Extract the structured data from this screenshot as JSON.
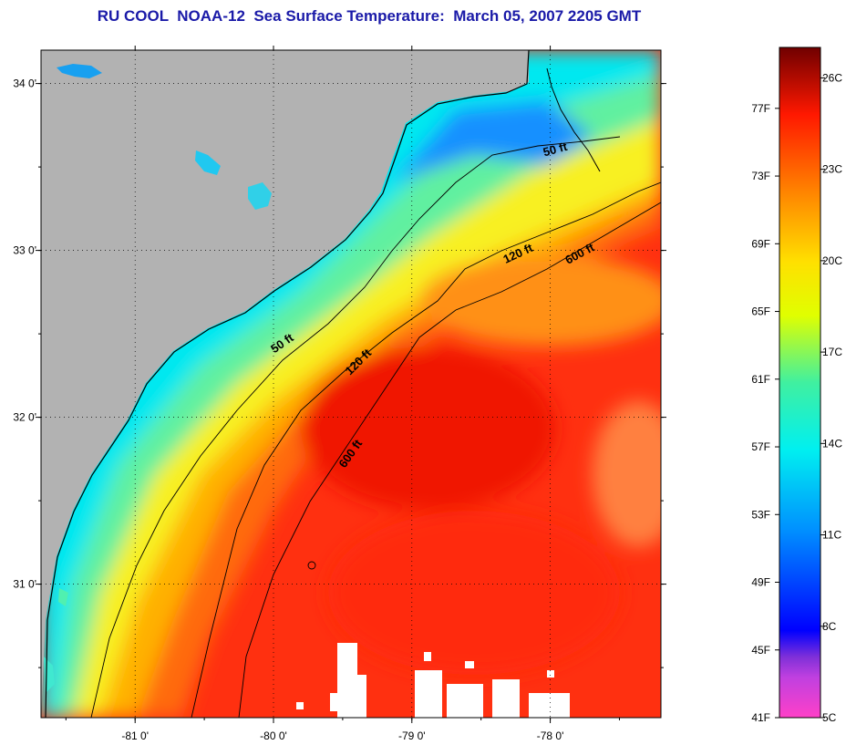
{
  "title": "RU COOL  NOAA-12  Sea Surface Temperature:  March 05, 2007 2205 GMT",
  "map": {
    "lon_ticks": [
      {
        "label": "-81 0'",
        "lon": -81
      },
      {
        "label": "-80 0'",
        "lon": -80
      },
      {
        "label": "-79 0'",
        "lon": -79
      },
      {
        "label": "-78 0'",
        "lon": -78
      }
    ],
    "lat_ticks": [
      {
        "label": "34 0'",
        "lat": 34
      },
      {
        "label": "33 0'",
        "lat": 33
      },
      {
        "label": "32 0'",
        "lat": 32
      },
      {
        "label": "31 0'",
        "lat": 31
      }
    ],
    "extent": {
      "lon_min": -81.68,
      "lon_max": -77.2,
      "lat_min": 30.2,
      "lat_max": 34.2
    },
    "contours": [
      {
        "label": "50 ft"
      },
      {
        "label": "120 ft"
      },
      {
        "label": "600 ft"
      }
    ],
    "colors": {
      "land": "#b2b2b2",
      "coast": "#000000",
      "cloud": "#ffffff"
    }
  },
  "colorbar": {
    "fahrenheit": [
      "77F",
      "73F",
      "69F",
      "65F",
      "61F",
      "57F",
      "53F",
      "49F",
      "45F",
      "41F"
    ],
    "celsius": [
      "26C",
      "23C",
      "20C",
      "17C",
      "14C",
      "11C",
      "8C",
      "5C"
    ],
    "temp_c_min": 5,
    "temp_c_max": 27
  }
}
